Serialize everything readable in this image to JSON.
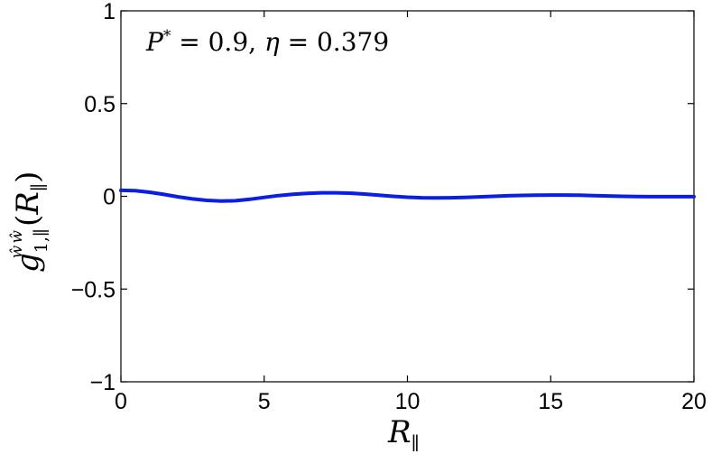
{
  "chart_data": {
    "type": "line",
    "title": "",
    "annotation": "P* = 0.9, η = 0.379",
    "xlabel": "R∥",
    "ylabel": "g₁,∥^ŵŵ(R∥)",
    "xlim": [
      0,
      20
    ],
    "ylim": [
      -1,
      1
    ],
    "x_ticks": [
      "0",
      "5",
      "10",
      "15",
      "20"
    ],
    "y_ticks": [
      "1",
      "0.5",
      "0",
      "−0.5",
      "−1"
    ],
    "grid": false,
    "line_color": "#0a1fe6",
    "series": [
      {
        "x": [
          0,
          0.5,
          1,
          1.5,
          2,
          2.5,
          3,
          3.5,
          4,
          4.5,
          5,
          5.5,
          6,
          6.5,
          7,
          7.5,
          8,
          8.5,
          9,
          9.5,
          10,
          10.5,
          11,
          11.5,
          12,
          12.5,
          13,
          13.5,
          14,
          14.5,
          15,
          15.5,
          16,
          16.5,
          17,
          17.5,
          18,
          18.5,
          19,
          19.5,
          20
        ],
        "y": [
          0.032,
          0.03,
          0.022,
          0.01,
          -0.003,
          -0.014,
          -0.022,
          -0.026,
          -0.024,
          -0.016,
          -0.006,
          0.004,
          0.011,
          0.016,
          0.019,
          0.019,
          0.017,
          0.012,
          0.006,
          0.0,
          -0.005,
          -0.008,
          -0.009,
          -0.008,
          -0.006,
          -0.003,
          0.0,
          0.003,
          0.005,
          0.006,
          0.007,
          0.007,
          0.006,
          0.004,
          0.002,
          0.0,
          -0.001,
          -0.002,
          -0.002,
          -0.002,
          -0.002
        ]
      }
    ]
  }
}
